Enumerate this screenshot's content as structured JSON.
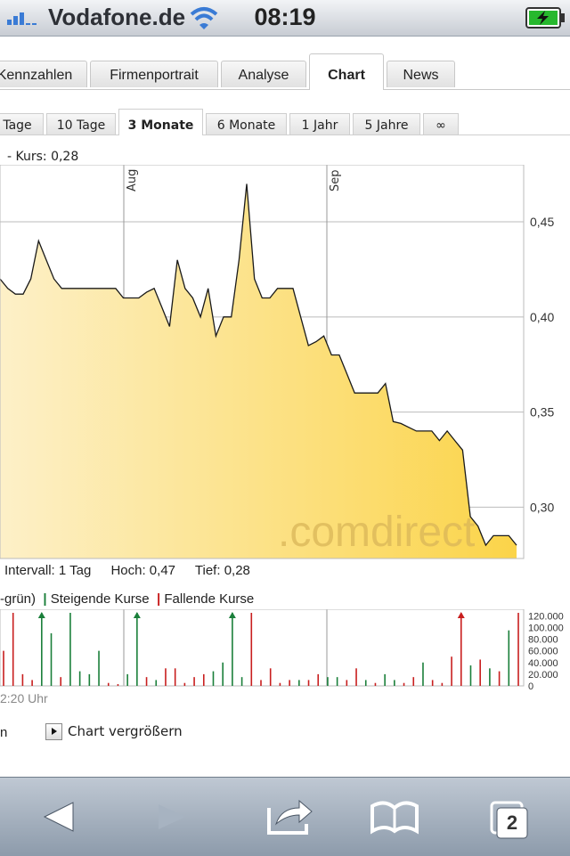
{
  "status_bar": {
    "carrier": "Vodafone.de",
    "time": "08:19"
  },
  "section_tabs": [
    {
      "label": "Kennzahlen",
      "active": false
    },
    {
      "label": "Firmenportrait",
      "active": false
    },
    {
      "label": "Analyse",
      "active": false
    },
    {
      "label": "Chart",
      "active": true
    },
    {
      "label": "News",
      "active": false
    }
  ],
  "period_tabs": [
    {
      "label": "Tage",
      "active": false
    },
    {
      "label": "10 Tage",
      "active": false
    },
    {
      "label": "3 Monate",
      "active": true
    },
    {
      "label": "6 Monate",
      "active": false
    },
    {
      "label": "1 Jahr",
      "active": false
    },
    {
      "label": "5 Jahre",
      "active": false
    },
    {
      "label": "∞",
      "active": false
    }
  ],
  "quote_line": "- Kurs: 0,28",
  "chart_data": {
    "type": "area",
    "x_labels": [
      "Aug",
      "Sep"
    ],
    "y_ticks": [
      "0,45",
      "0,40",
      "0,35",
      "0,30"
    ],
    "ylim": [
      0.273,
      0.48
    ],
    "values": [
      0.42,
      0.415,
      0.412,
      0.412,
      0.42,
      0.44,
      0.43,
      0.42,
      0.415,
      0.415,
      0.415,
      0.415,
      0.415,
      0.415,
      0.415,
      0.415,
      0.41,
      0.41,
      0.41,
      0.413,
      0.415,
      0.405,
      0.395,
      0.43,
      0.415,
      0.41,
      0.4,
      0.415,
      0.39,
      0.4,
      0.4,
      0.43,
      0.47,
      0.42,
      0.41,
      0.41,
      0.415,
      0.415,
      0.415,
      0.4,
      0.385,
      0.387,
      0.39,
      0.38,
      0.38,
      0.37,
      0.36,
      0.36,
      0.36,
      0.36,
      0.365,
      0.345,
      0.344,
      0.342,
      0.34,
      0.34,
      0.34,
      0.335,
      0.34,
      0.335,
      0.33,
      0.295,
      0.29,
      0.28,
      0.285,
      0.285,
      0.285,
      0.28
    ],
    "fill_color": "#fbd449",
    "line_color": "#1a1a1a",
    "grid": true,
    "watermark": ".comdirect"
  },
  "stats": {
    "interval": "Intervall: 1 Tag",
    "high": "Hoch: 0,47",
    "low": "Tief: 0,28"
  },
  "legend": {
    "prefix": "-grün)",
    "rising_label": "Steigende Kurse",
    "falling_label": "Fallende Kurse",
    "rising_color": "#1a7f3a",
    "falling_color": "#c81e1e"
  },
  "volume_data": {
    "type": "bar",
    "y_ticks": [
      "120.000",
      "100.000",
      "80.000",
      "60.000",
      "40.000",
      "20.000",
      "0"
    ],
    "ymax": 125000,
    "bars": [
      {
        "v": 60000,
        "c": "r"
      },
      {
        "v": 125000,
        "c": "r"
      },
      {
        "v": 20000,
        "c": "r"
      },
      {
        "v": 10000,
        "c": "r"
      },
      {
        "v": 125000,
        "c": "g",
        "arrow": true
      },
      {
        "v": 90000,
        "c": "g"
      },
      {
        "v": 15000,
        "c": "r"
      },
      {
        "v": 125000,
        "c": "g"
      },
      {
        "v": 25000,
        "c": "g"
      },
      {
        "v": 20000,
        "c": "g"
      },
      {
        "v": 60000,
        "c": "g"
      },
      {
        "v": 5000,
        "c": "r"
      },
      {
        "v": 3000,
        "c": "r"
      },
      {
        "v": 20000,
        "c": "g"
      },
      {
        "v": 125000,
        "c": "g",
        "arrow": true
      },
      {
        "v": 15000,
        "c": "r"
      },
      {
        "v": 10000,
        "c": "g"
      },
      {
        "v": 30000,
        "c": "r"
      },
      {
        "v": 30000,
        "c": "r"
      },
      {
        "v": 5000,
        "c": "r"
      },
      {
        "v": 15000,
        "c": "r"
      },
      {
        "v": 20000,
        "c": "r"
      },
      {
        "v": 25000,
        "c": "g"
      },
      {
        "v": 40000,
        "c": "g"
      },
      {
        "v": 125000,
        "c": "g",
        "arrow": true
      },
      {
        "v": 15000,
        "c": "g"
      },
      {
        "v": 125000,
        "c": "r"
      },
      {
        "v": 10000,
        "c": "r"
      },
      {
        "v": 30000,
        "c": "r"
      },
      {
        "v": 5000,
        "c": "r"
      },
      {
        "v": 10000,
        "c": "r"
      },
      {
        "v": 10000,
        "c": "g"
      },
      {
        "v": 10000,
        "c": "r"
      },
      {
        "v": 20000,
        "c": "r"
      },
      {
        "v": 15000,
        "c": "g"
      },
      {
        "v": 15000,
        "c": "g"
      },
      {
        "v": 10000,
        "c": "r"
      },
      {
        "v": 30000,
        "c": "r"
      },
      {
        "v": 10000,
        "c": "g"
      },
      {
        "v": 5000,
        "c": "r"
      },
      {
        "v": 20000,
        "c": "g"
      },
      {
        "v": 10000,
        "c": "g"
      },
      {
        "v": 5000,
        "c": "r"
      },
      {
        "v": 15000,
        "c": "r"
      },
      {
        "v": 40000,
        "c": "g"
      },
      {
        "v": 10000,
        "c": "r"
      },
      {
        "v": 5000,
        "c": "r"
      },
      {
        "v": 50000,
        "c": "r"
      },
      {
        "v": 125000,
        "c": "r",
        "arrow": true
      },
      {
        "v": 35000,
        "c": "g"
      },
      {
        "v": 45000,
        "c": "r"
      },
      {
        "v": 30000,
        "c": "g"
      },
      {
        "v": 25000,
        "c": "r"
      },
      {
        "v": 95000,
        "c": "g"
      },
      {
        "v": 125000,
        "c": "r"
      }
    ]
  },
  "time_label": "2:20 Uhr",
  "bottom_left_text": "n",
  "enlarge_label": "Chart vergrößern",
  "toolbar": {
    "tabs_count": "2",
    "icons": [
      "back-arrow-icon",
      "forward-arrow-icon",
      "share-icon",
      "bookmarks-icon",
      "pages-icon"
    ]
  }
}
